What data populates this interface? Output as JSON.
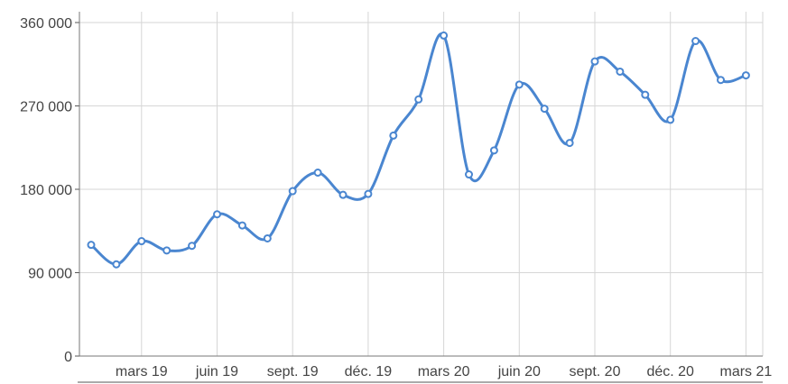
{
  "chart_data": {
    "type": "line",
    "title": "",
    "xlabel": "",
    "ylabel": "",
    "x": [
      "2019-01",
      "2019-02",
      "2019-03",
      "2019-04",
      "2019-05",
      "2019-06",
      "2019-07",
      "2019-08",
      "2019-09",
      "2019-10",
      "2019-11",
      "2019-12",
      "2020-01",
      "2020-02",
      "2020-03",
      "2020-04",
      "2020-05",
      "2020-06",
      "2020-07",
      "2020-08",
      "2020-09",
      "2020-10",
      "2020-11",
      "2020-12",
      "2021-01",
      "2021-02",
      "2021-03"
    ],
    "x_tick_labels": [
      "mars 19",
      "juin 19",
      "sept. 19",
      "déc. 19",
      "mars 20",
      "juin 20",
      "sept. 20",
      "déc. 20",
      "mars 21"
    ],
    "x_tick_positions": [
      "2019-03",
      "2019-06",
      "2019-09",
      "2019-12",
      "2020-03",
      "2020-06",
      "2020-09",
      "2020-12",
      "2021-03"
    ],
    "y_tick_labels": [
      "0",
      "90 000",
      "180 000",
      "270 000",
      "360 000"
    ],
    "y_tick_values": [
      0,
      90000,
      180000,
      270000,
      360000
    ],
    "ylim": [
      0,
      360000
    ],
    "grid": true,
    "legend": "none",
    "series": [
      {
        "color": "#4a86d0",
        "values": [
          120000,
          99000,
          124000,
          114000,
          119000,
          153000,
          141000,
          127000,
          178000,
          198000,
          174000,
          175000,
          238000,
          277000,
          346000,
          196000,
          222000,
          293000,
          267000,
          230000,
          318000,
          307000,
          282000,
          255000,
          340000,
          298000,
          303000
        ]
      }
    ]
  }
}
